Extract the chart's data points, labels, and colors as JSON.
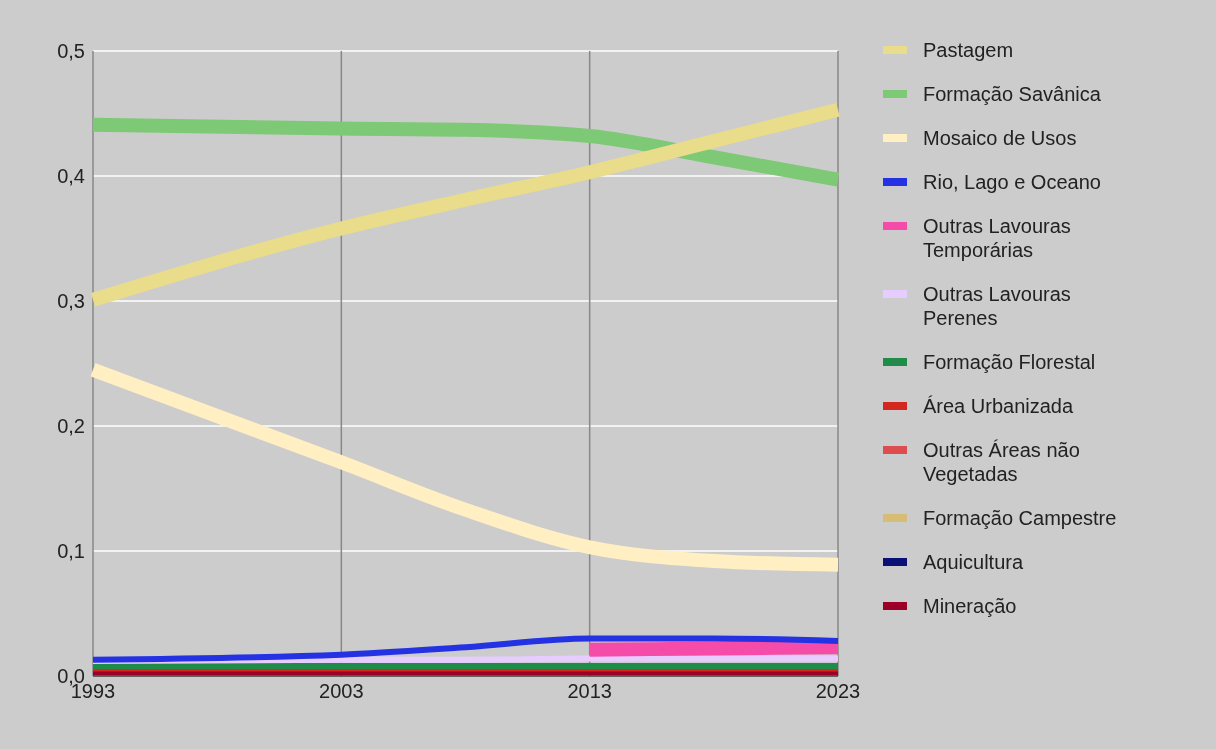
{
  "chart_data": {
    "type": "line",
    "x": [
      1993,
      2003,
      2008,
      2013,
      2018,
      2023
    ],
    "xlim": [
      1993,
      2023
    ],
    "xticks": [
      1993,
      2003,
      2013,
      2023
    ],
    "ylim": [
      0,
      0.5
    ],
    "yticks": [
      {
        "value": 0,
        "label": "0,0"
      },
      {
        "value": 0.1,
        "label": "0,1"
      },
      {
        "value": 0.2,
        "label": "0,2"
      },
      {
        "value": 0.3,
        "label": "0,3"
      },
      {
        "value": 0.4,
        "label": "0,4"
      },
      {
        "value": 0.5,
        "label": "0,5"
      }
    ],
    "grid": true,
    "legend": "right",
    "marker": "none",
    "line_style": "solid",
    "series": [
      {
        "name": "Pastagem",
        "color": "#e9dc8a",
        "values": [
          0.301,
          0.358,
          0.381,
          0.403,
          0.428,
          0.453
        ]
      },
      {
        "name": "Formação Savânica",
        "color": "#7dc975",
        "values": [
          0.441,
          0.438,
          0.437,
          0.432,
          0.415,
          0.397
        ]
      },
      {
        "name": "Mosaico de Usos",
        "color": "#ffefc3",
        "values": [
          0.245,
          0.171,
          0.133,
          0.103,
          0.092,
          0.089
        ]
      },
      {
        "name": "Rio, Lago e Oceano",
        "color": "#2532e4",
        "values": [
          0.013,
          0.017,
          0.023,
          0.03,
          0.03,
          0.028
        ]
      },
      {
        "name": "Outras Lavouras Temporárias",
        "color": "#f54ca9",
        "values": [
          null,
          null,
          null,
          0.021,
          0.022,
          0.023
        ]
      },
      {
        "name": "Outras Lavouras Perenes",
        "color": "#e6ccff",
        "values": [
          0.012,
          0.013,
          0.013,
          0.014,
          0.014,
          0.014
        ]
      },
      {
        "name": "Formação Florestal",
        "color": "#1f8d49",
        "values": [
          0.008,
          0.008,
          0.008,
          0.008,
          0.008,
          0.008
        ]
      },
      {
        "name": "Área Urbanizada",
        "color": "#d4271e",
        "values": [
          0.006,
          0.006,
          0.006,
          0.006,
          0.006,
          0.006
        ]
      },
      {
        "name": "Outras Áreas não Vegetadas",
        "color": "#db4d4f",
        "values": [
          null,
          null,
          null,
          null,
          null,
          null
        ]
      },
      {
        "name": "Formação Campestre",
        "color": "#d6bc74",
        "values": [
          null,
          null,
          null,
          null,
          null,
          null
        ]
      },
      {
        "name": "Aquicultura",
        "color": "#091077",
        "values": [
          null,
          null,
          null,
          null,
          null,
          null
        ]
      },
      {
        "name": "Mineração",
        "color": "#9c0027",
        "values": [
          0.003,
          0.003,
          0.003,
          0.003,
          0.003,
          0.003
        ]
      }
    ]
  }
}
